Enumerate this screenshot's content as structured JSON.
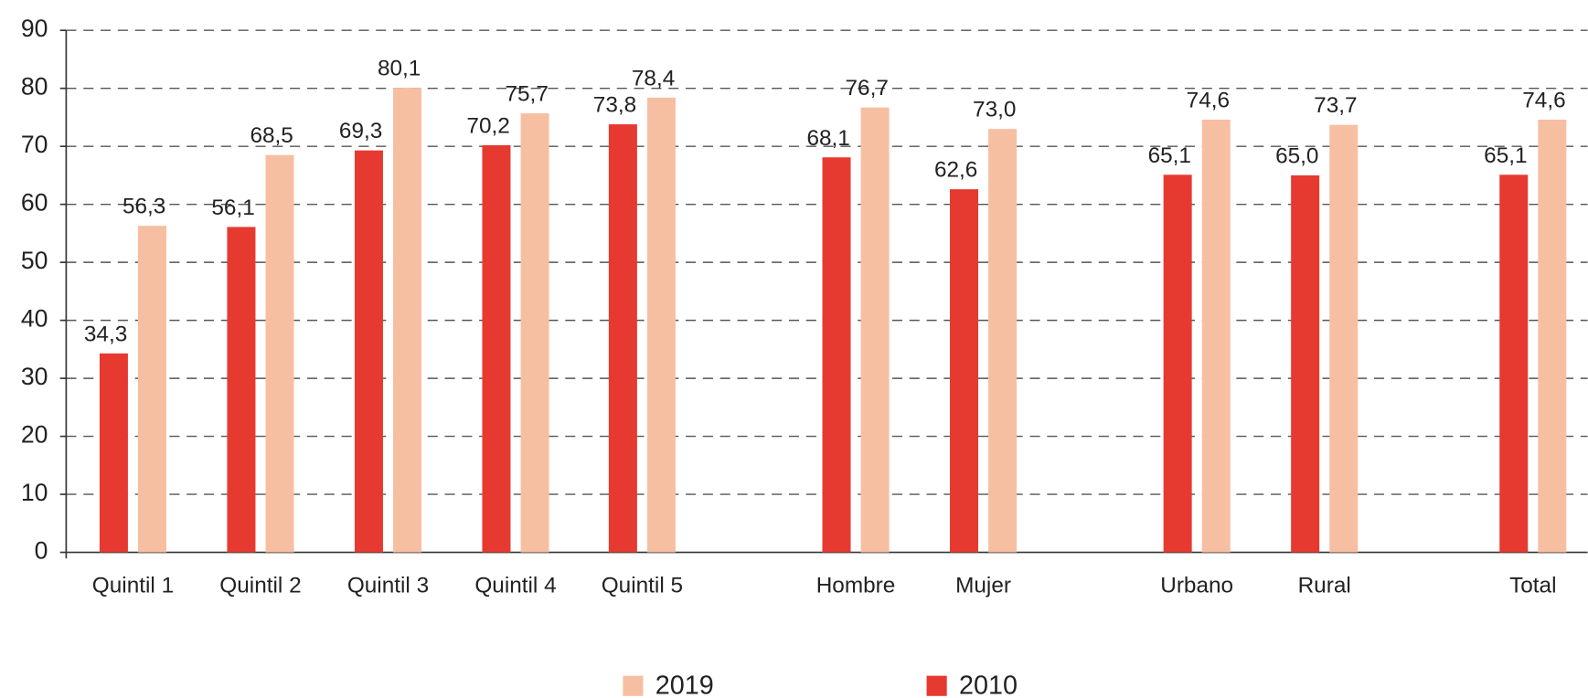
{
  "chart_data": {
    "type": "bar",
    "categories": [
      "Quintil 1",
      "Quintil 2",
      "Quintil 3",
      "Quintil 4",
      "Quintil 5",
      "Hombre",
      "Mujer",
      "Urbano",
      "Rural",
      "Total"
    ],
    "series": [
      {
        "name": "2010",
        "color": "#e63a30",
        "values": [
          34.3,
          56.1,
          69.3,
          70.2,
          73.8,
          68.1,
          62.6,
          65.1,
          65.0,
          65.1
        ],
        "value_labels": [
          "34,3",
          "56,1",
          "69,3",
          "70,2",
          "73,8",
          "68,1",
          "62,6",
          "65,1",
          "65,0",
          "65,1"
        ]
      },
      {
        "name": "2019",
        "color": "#f7bfa2",
        "values": [
          56.3,
          68.5,
          80.1,
          75.7,
          78.4,
          76.7,
          73.0,
          74.6,
          73.7,
          74.6
        ],
        "value_labels": [
          "56,3",
          "68,5",
          "80,1",
          "75,7",
          "78,4",
          "76,7",
          "73,0",
          "74,6",
          "73,7",
          "74,6"
        ]
      }
    ],
    "ylim": [
      0,
      90
    ],
    "yticks": [
      0,
      10,
      20,
      30,
      40,
      50,
      60,
      70,
      80,
      90
    ],
    "grid": true,
    "legend": "bottom"
  }
}
